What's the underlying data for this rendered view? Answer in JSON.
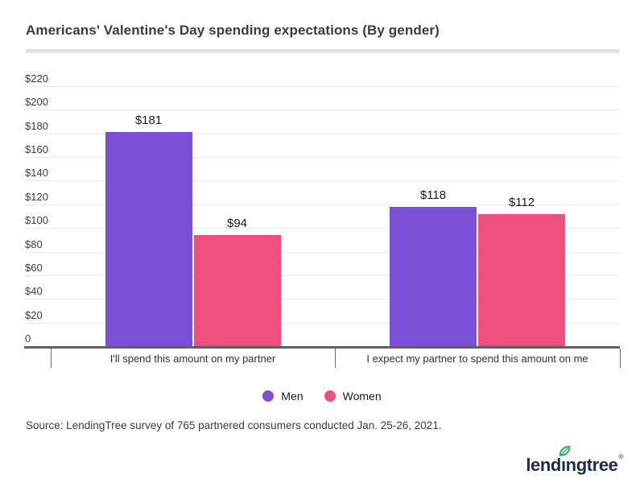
{
  "title": "Americans' Valentine's Day spending expectations (By gender)",
  "source": "Source: LendingTree survey of 765 partnered consumers conducted Jan. 25-26, 2021.",
  "legend": [
    {
      "label": "Men",
      "color": "#7b4fd6"
    },
    {
      "label": "Women",
      "color": "#ef4e7f"
    }
  ],
  "logo": {
    "part1": "lend",
    "dotless_i": "ı",
    "part3": "ngtree",
    "registered": "®",
    "leaf_color": "#2ab56e",
    "text_color": "#1d2b4a"
  },
  "colors": {
    "men_bar": "#7b4fd6",
    "women_bar": "#ef4e7f",
    "gridline": "#e9e9e9",
    "axis": "#5e5e5e",
    "title_text": "#3c3c3c",
    "divider": "#e2e2e2"
  },
  "chart_data": {
    "type": "bar",
    "title": "Americans' Valentine's Day spending expectations (By gender)",
    "categories": [
      "I'll spend this amount on my partner",
      "I expect my partner to spend this amount on me"
    ],
    "series": [
      {
        "name": "Men",
        "color": "#7b4fd6",
        "values": [
          181,
          118
        ],
        "labels": [
          "$181",
          "$118"
        ]
      },
      {
        "name": "Women",
        "color": "#ef4e7f",
        "values": [
          94,
          112
        ],
        "labels": [
          "$94",
          "$112"
        ]
      }
    ],
    "xlabel": "",
    "ylabel": "",
    "ylim": [
      0,
      220
    ],
    "yticks": [
      0,
      20,
      40,
      60,
      80,
      100,
      120,
      140,
      160,
      180,
      200,
      220
    ],
    "ytick_labels": [
      "0",
      "$20",
      "$40",
      "$60",
      "$80",
      "$100",
      "$120",
      "$140",
      "$160",
      "$180",
      "$200",
      "$220"
    ],
    "grid": true,
    "legend_position": "bottom"
  }
}
